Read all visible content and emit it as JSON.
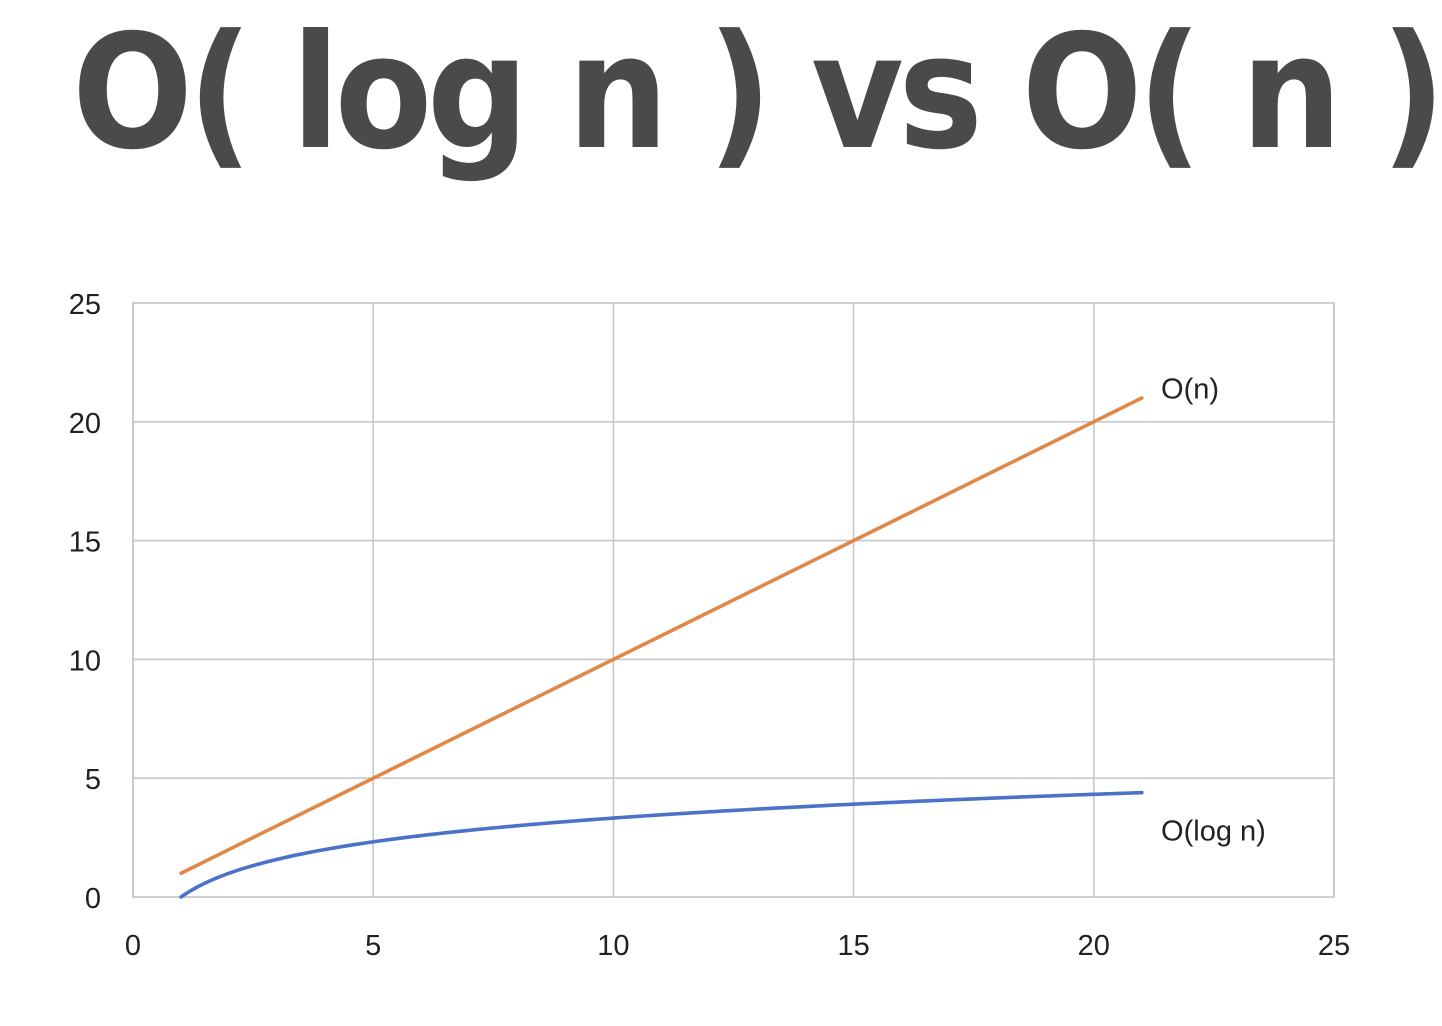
{
  "headline": "O( log n )  vs  O( n )",
  "chart_data": {
    "type": "line",
    "title": "",
    "xlabel": "",
    "ylabel": "",
    "xlim": [
      0,
      25
    ],
    "ylim": [
      0,
      25
    ],
    "x_ticks": [
      "0",
      "5",
      "10",
      "15",
      "20",
      "25"
    ],
    "y_ticks": [
      "0",
      "5",
      "10",
      "15",
      "20",
      "25"
    ],
    "grid": true,
    "legend": "none",
    "series": [
      {
        "color": "#e0884a",
        "x": [
          1,
          5,
          10,
          15,
          20,
          21
        ],
        "y": [
          1,
          5,
          10,
          15,
          20,
          21
        ]
      },
      {
        "color": "#4a72c9",
        "x": [
          1,
          2,
          3,
          4,
          5,
          6,
          7,
          8,
          9,
          10,
          11,
          12,
          13,
          14,
          15,
          16,
          17,
          18,
          19,
          20,
          21
        ],
        "y": [
          0,
          1,
          1.58,
          2,
          2.32,
          2.58,
          2.81,
          3,
          3.17,
          3.32,
          3.46,
          3.58,
          3.7,
          3.81,
          3.91,
          4,
          4.09,
          4.17,
          4.25,
          4.32,
          4.39
        ]
      }
    ],
    "annotations": [
      {
        "text": "O(n)",
        "x": 21.4,
        "y": 21.4
      },
      {
        "text": "O(log n)",
        "x": 21.4,
        "y": 2.8
      }
    ]
  }
}
